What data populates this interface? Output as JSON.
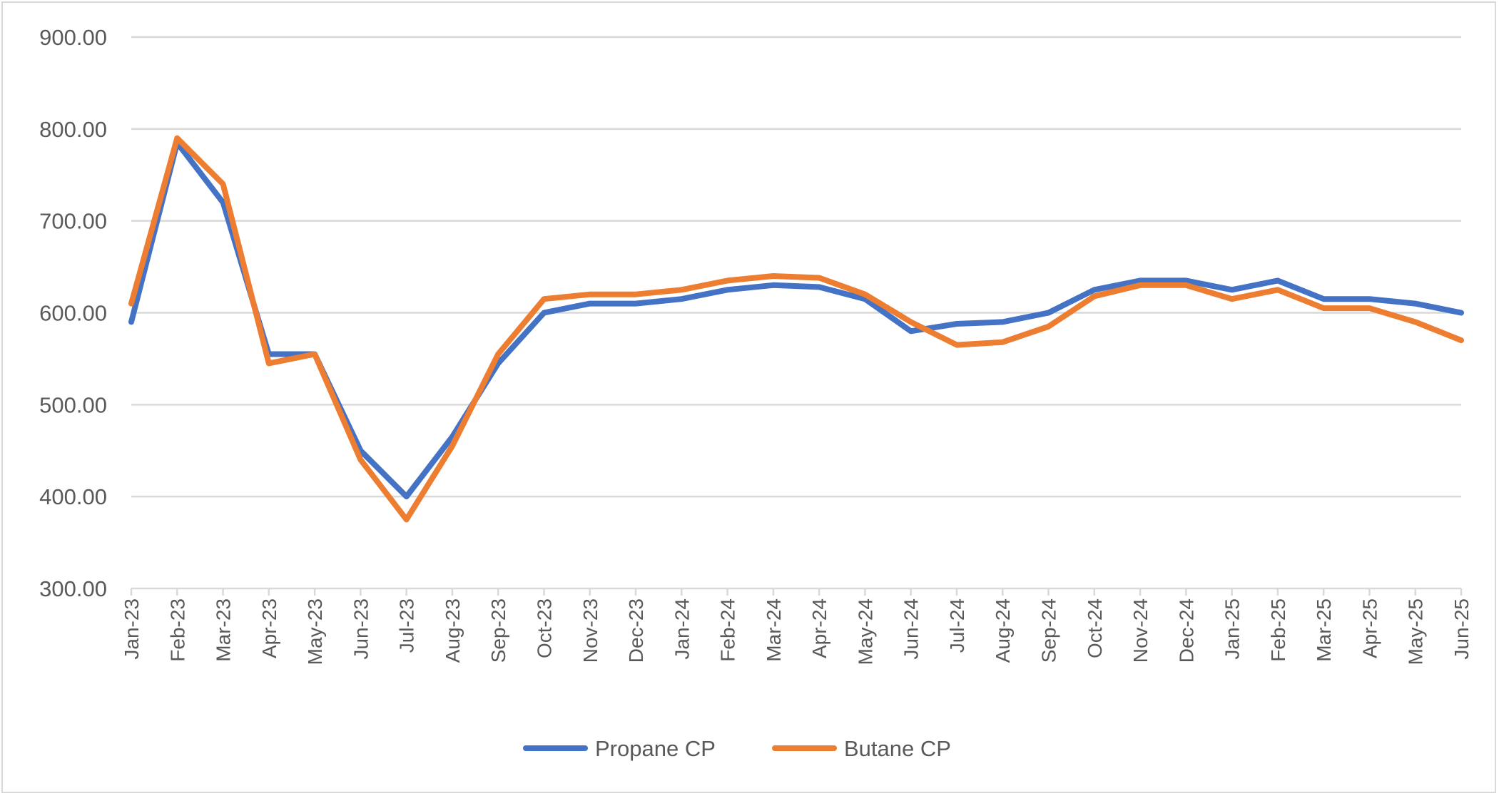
{
  "chart_data": {
    "type": "line",
    "title": "",
    "xlabel": "",
    "ylabel": "",
    "ylim": [
      300,
      900
    ],
    "yticks": [
      "300.00",
      "400.00",
      "500.00",
      "600.00",
      "700.00",
      "800.00",
      "900.00"
    ],
    "grid": true,
    "legend_position": "bottom",
    "categories": [
      "Jan-23",
      "Feb-23",
      "Mar-23",
      "Apr-23",
      "May-23",
      "Jun-23",
      "Jul-23",
      "Aug-23",
      "Sep-23",
      "Oct-23",
      "Nov-23",
      "Dec-23",
      "Jan-24",
      "Feb-24",
      "Mar-24",
      "Apr-24",
      "May-24",
      "Jun-24",
      "Jul-24",
      "Aug-24",
      "Sep-24",
      "Oct-24",
      "Nov-24",
      "Dec-24",
      "Jan-25",
      "Feb-25",
      "Mar-25",
      "Apr-25",
      "May-25",
      "Jun-25"
    ],
    "series": [
      {
        "name": "Propane  CP",
        "color": "#4472C4",
        "values": [
          590,
          785,
          720,
          555,
          555,
          450,
          400,
          465,
          545,
          600,
          610,
          610,
          615,
          625,
          630,
          628,
          615,
          580,
          588,
          590,
          600,
          625,
          635,
          635,
          625,
          635,
          615,
          615,
          610,
          600
        ]
      },
      {
        "name": "Butane  CP",
        "color": "#ED7D31",
        "values": [
          610,
          790,
          740,
          545,
          555,
          440,
          375,
          455,
          555,
          615,
          620,
          620,
          625,
          635,
          640,
          638,
          620,
          590,
          565,
          568,
          585,
          618,
          630,
          630,
          615,
          625,
          605,
          605,
          590,
          570
        ]
      }
    ]
  }
}
